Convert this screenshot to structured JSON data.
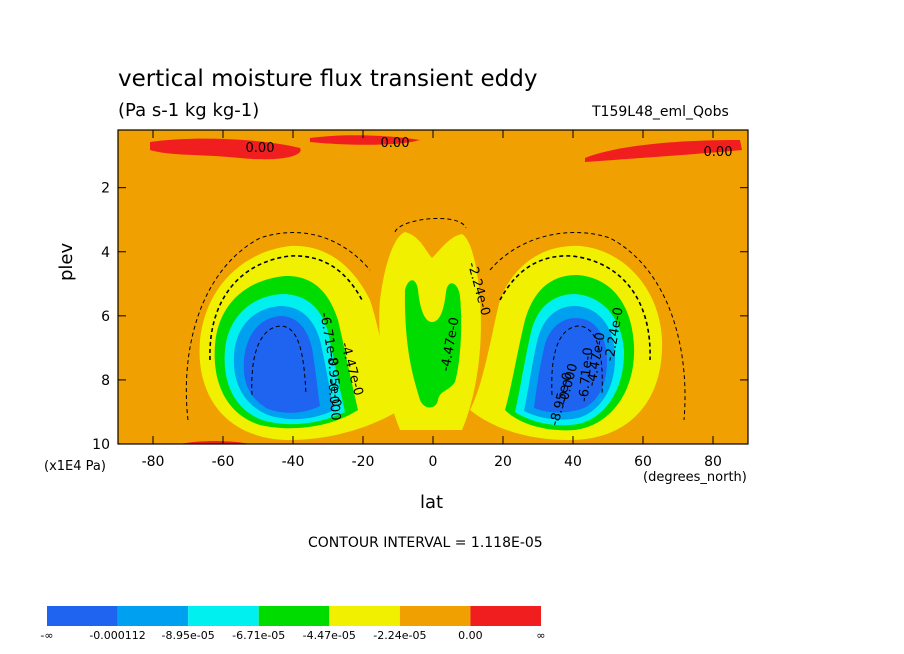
{
  "chart_data": {
    "type": "contour",
    "title": "vertical moisture flux transient eddy",
    "subtitle": "(Pa s-1 kg kg-1)",
    "run_id": "T159L48_eml_Qobs",
    "xlabel": "lat",
    "x_unit": "(degrees_north)",
    "ylabel": "plev",
    "y_unit": "(x1E4 Pa)",
    "xlim": [
      -90,
      90
    ],
    "ylim": [
      10,
      0.2
    ],
    "x_ticks": [
      -80,
      -60,
      -40,
      -20,
      0,
      20,
      40,
      60,
      80
    ],
    "y_ticks": [
      2,
      4,
      6,
      8,
      10
    ],
    "contour_interval_text": "CONTOUR INTERVAL = 1.118E-05",
    "contour_labels": [
      "0.00",
      "0.00",
      "0.00",
      "-2.24e-0",
      "-4.47e-0",
      "-6.71e-0",
      "-8.95e-0",
      "-0.000",
      "-4.47e-0",
      "-2.24e-0",
      "-4.47e-0",
      "-6.71e-0",
      "-8.95e-0",
      "-0.000"
    ],
    "colorbar": {
      "colors": [
        "#1e64f0",
        "#00a0f0",
        "#00f0f0",
        "#00dc00",
        "#f0f000",
        "#f0a000",
        "#f01e1e"
      ],
      "labels": [
        "-∞",
        "-0.000112",
        "-8.95e-05",
        "-6.71e-05",
        "-4.47e-05",
        "-2.24e-05",
        "0.00",
        "∞"
      ]
    },
    "features": [
      {
        "kind": "minimum",
        "lat": -37,
        "plev": 7.6,
        "value_range": "< -0.000112"
      },
      {
        "kind": "minimum",
        "lat": 36,
        "plev": 7.6,
        "value_range": "< -0.000112"
      },
      {
        "kind": "local_minimum",
        "lat": 0,
        "plev": 6.5,
        "value_range": "-6.71e-05 to -4.47e-05"
      },
      {
        "kind": "positive_band",
        "lat_range": [
          -85,
          85
        ],
        "plev": 0.5,
        "value_range": "> 0.00"
      }
    ]
  }
}
